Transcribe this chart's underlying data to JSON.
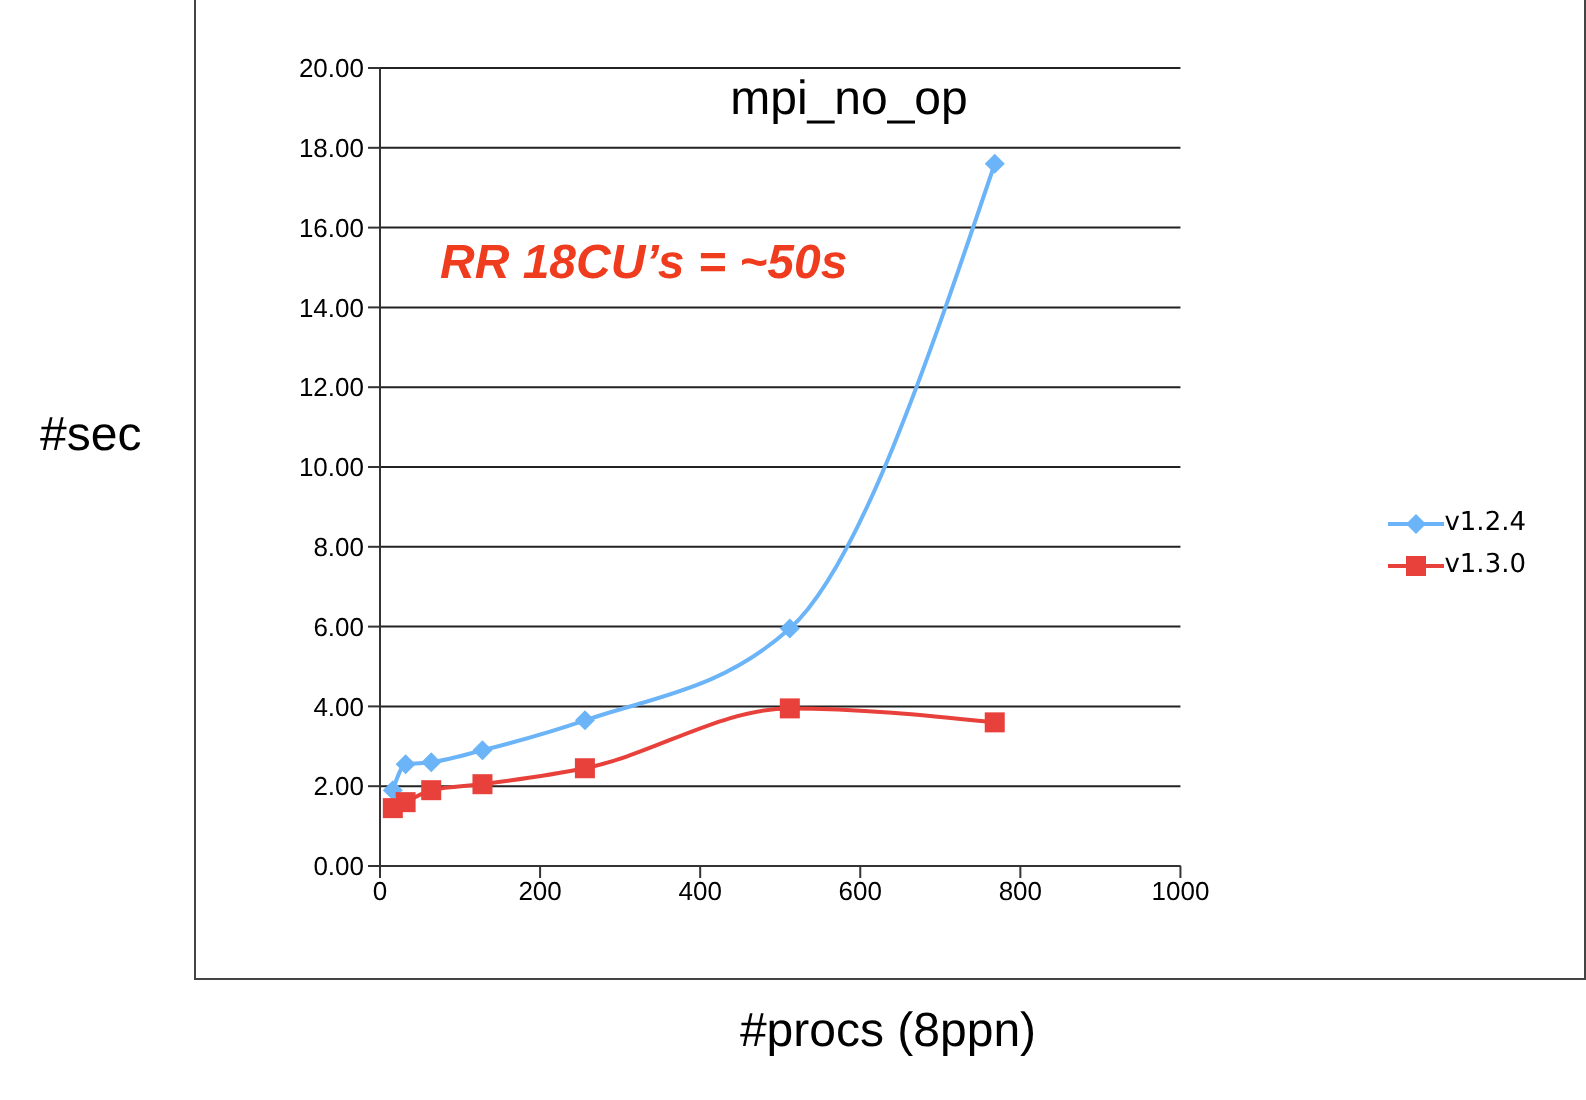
{
  "chart_data": {
    "type": "line",
    "title": "mpi_no_op",
    "xlabel": "#procs (8ppn)",
    "ylabel": "#sec",
    "annotations": [
      "RR 18CU’s = ~50s"
    ],
    "series": [
      {
        "name": "v1.2.4",
        "color": "#6cb4f8",
        "marker": "diamond",
        "x": [
          16,
          32,
          64,
          128,
          256,
          512,
          768
        ],
        "values": [
          1.9,
          2.55,
          2.6,
          2.9,
          3.65,
          5.95,
          17.6
        ]
      },
      {
        "name": "v1.3.0",
        "color": "#e8403a",
        "marker": "square",
        "x": [
          16,
          32,
          64,
          128,
          256,
          512,
          768
        ],
        "values": [
          1.45,
          1.6,
          1.9,
          2.05,
          2.45,
          3.95,
          3.6
        ]
      }
    ],
    "xlim": [
      0,
      1000
    ],
    "xticks": [
      0,
      200,
      400,
      600,
      800,
      1000
    ],
    "ylim": [
      0,
      20
    ],
    "yticks": [
      {
        "value": 0,
        "label": "0.00"
      },
      {
        "value": 2,
        "label": "2.00"
      },
      {
        "value": 4,
        "label": "4.00"
      },
      {
        "value": 6,
        "label": "6.00"
      },
      {
        "value": 8,
        "label": "8.00"
      },
      {
        "value": 10,
        "label": "10.00"
      },
      {
        "value": 12,
        "label": "12.00"
      },
      {
        "value": 14,
        "label": "14.00"
      },
      {
        "value": 16,
        "label": "16.00"
      },
      {
        "value": 18,
        "label": "18.00"
      },
      {
        "value": 20,
        "label": "20.00"
      }
    ],
    "grid": "y",
    "legend": "right",
    "line_style": "solid"
  }
}
